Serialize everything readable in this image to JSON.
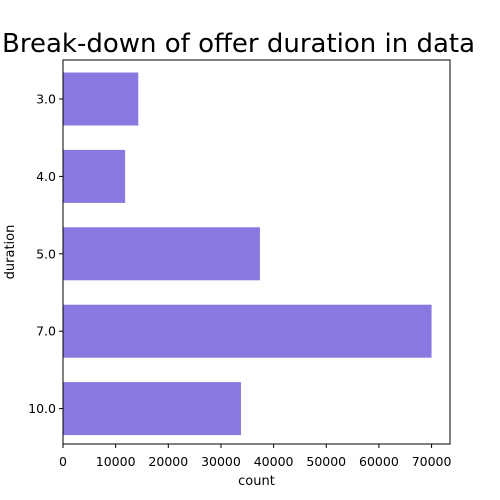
{
  "chart_data": {
    "type": "bar",
    "orientation": "horizontal",
    "title": "Break-down of offer duration in data",
    "xlabel": "count",
    "ylabel": "duration",
    "categories": [
      "3.0",
      "4.0",
      "5.0",
      "7.0",
      "10.0"
    ],
    "values": [
      14300,
      11800,
      37400,
      70000,
      33800
    ],
    "xlim": [
      0,
      73500
    ],
    "xticks": [
      0,
      10000,
      20000,
      30000,
      40000,
      50000,
      60000,
      70000
    ],
    "xtick_labels": [
      "0",
      "10000",
      "20000",
      "30000",
      "40000",
      "50000",
      "60000",
      "70000"
    ],
    "grid": false,
    "bar_color": "#8779e0"
  }
}
